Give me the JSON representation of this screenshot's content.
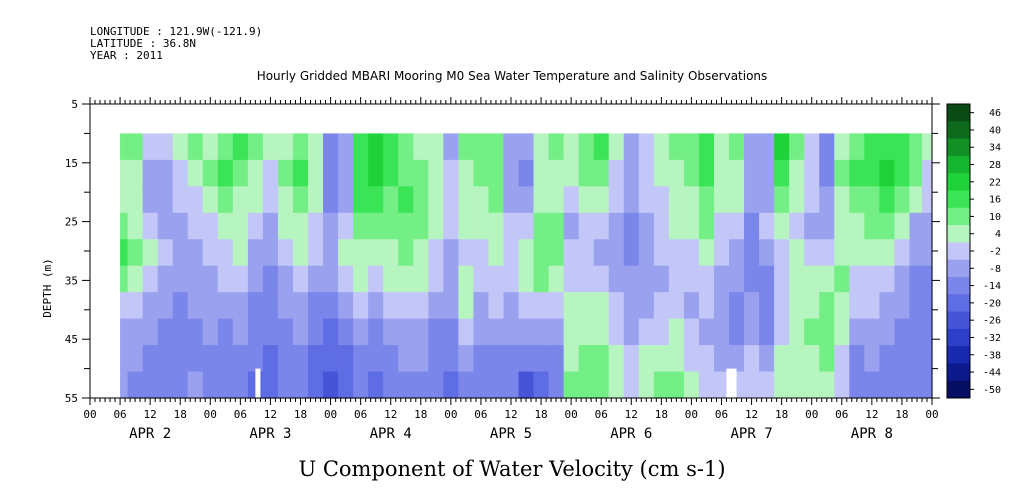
{
  "header": {
    "longitude": "LONGITUDE : 121.9W(-121.9)",
    "latitude": "LATITUDE : 36.8N",
    "year": "YEAR : 2011"
  },
  "chart_data": {
    "type": "heatmap",
    "title": "Hourly Gridded MBARI Mooring M0 Sea Water Temperature and Salinity Observations",
    "xlabel": "U Component of Water Velocity (cm s-1)",
    "ylabel": "DEPTH (m)",
    "y_ticks": [
      5,
      15,
      25,
      35,
      45,
      55
    ],
    "ylim": [
      55,
      5
    ],
    "data_depth_range": [
      10,
      55
    ],
    "x_hour_ticks": [
      "00",
      "06",
      "12",
      "18",
      "00",
      "06",
      "12",
      "18",
      "00",
      "06",
      "12",
      "18",
      "00",
      "06",
      "12",
      "18",
      "00",
      "06",
      "12",
      "18",
      "00",
      "06",
      "12",
      "18",
      "00",
      "06",
      "12",
      "18",
      "00"
    ],
    "day_labels": [
      "APR  2",
      "APR  3",
      "APR  4",
      "APR  5",
      "APR  6",
      "APR  7",
      "APR  8"
    ],
    "xlim_hours": [
      0,
      168
    ],
    "data_start_hour": 6,
    "colorbar_levels": [
      "46",
      "40",
      "34",
      "28",
      "22",
      "16",
      "10",
      "4",
      "-2",
      "-8",
      "-14",
      "-20",
      "-26",
      "-32",
      "-38",
      "-44",
      "-50"
    ],
    "colorbar_colors": [
      "#0b4a14",
      "#0e6b1e",
      "#129026",
      "#16b52f",
      "#1fd23a",
      "#3be457",
      "#73ef86",
      "#b7f5c0",
      "#c3c7f7",
      "#9aa2f0",
      "#7b86ea",
      "#5f6de4",
      "#4655d8",
      "#2d3ec9",
      "#1a2ab0",
      "#0d1a8c",
      "#060e64"
    ],
    "columns": [
      {
        "hour": 6,
        "v": [
          12,
          8,
          6,
          10,
          16,
          10,
          2,
          -4,
          -6,
          -8
        ]
      },
      {
        "hour": 9,
        "v": [
          10,
          6,
          4,
          8,
          14,
          8,
          0,
          -6,
          -8,
          -10
        ]
      },
      {
        "hour": 12,
        "v": [
          2,
          -4,
          -6,
          -2,
          4,
          2,
          -4,
          -8,
          -10,
          -12
        ]
      },
      {
        "hour": 15,
        "v": [
          -2,
          -6,
          -8,
          -6,
          -2,
          -4,
          -8,
          -10,
          -12,
          -12
        ]
      },
      {
        "hour": 18,
        "v": [
          6,
          2,
          -2,
          -4,
          -6,
          -8,
          -10,
          -12,
          -14,
          -14
        ]
      },
      {
        "hour": 21,
        "v": [
          10,
          8,
          2,
          -2,
          -4,
          -6,
          -8,
          -10,
          -10,
          -8
        ]
      },
      {
        "hour": 24,
        "v": [
          8,
          10,
          6,
          2,
          0,
          -4,
          -6,
          -8,
          -10,
          -12
        ]
      },
      {
        "hour": 27,
        "v": [
          12,
          16,
          10,
          6,
          2,
          -2,
          -6,
          -10,
          -12,
          -14
        ]
      },
      {
        "hour": 30,
        "v": [
          16,
          14,
          8,
          4,
          6,
          2,
          -4,
          -8,
          -12,
          -14
        ]
      },
      {
        "hour": 33,
        "v": [
          10,
          8,
          4,
          -2,
          -6,
          -8,
          -10,
          -12,
          -14,
          -16
        ]
      },
      {
        "hour": 36,
        "v": [
          4,
          2,
          0,
          -4,
          -8,
          -10,
          -12,
          -14,
          -16,
          -16
        ]
      },
      {
        "hour": 39,
        "v": [
          8,
          10,
          8,
          4,
          0,
          -4,
          -8,
          -10,
          -12,
          -14
        ]
      },
      {
        "hour": 42,
        "v": [
          14,
          16,
          12,
          8,
          4,
          0,
          -4,
          -8,
          -10,
          -12
        ]
      },
      {
        "hour": 45,
        "v": [
          8,
          6,
          4,
          2,
          -2,
          -6,
          -10,
          -14,
          -16,
          -18
        ]
      },
      {
        "hour": 48,
        "v": [
          -10,
          -14,
          -10,
          -6,
          -4,
          -8,
          -12,
          -16,
          -20,
          -22
        ]
      },
      {
        "hour": 51,
        "v": [
          -6,
          -8,
          -6,
          0,
          6,
          2,
          -6,
          -12,
          -16,
          -18
        ]
      },
      {
        "hour": 54,
        "v": [
          18,
          20,
          16,
          10,
          8,
          4,
          -2,
          -8,
          -12,
          -14
        ]
      },
      {
        "hour": 57,
        "v": [
          22,
          24,
          18,
          12,
          6,
          2,
          -4,
          -10,
          -14,
          -16
        ]
      },
      {
        "hour": 60,
        "v": [
          16,
          18,
          14,
          10,
          6,
          4,
          0,
          -6,
          -10,
          -14
        ]
      },
      {
        "hour": 63,
        "v": [
          10,
          12,
          16,
          14,
          10,
          6,
          2,
          -4,
          -8,
          -10
        ]
      },
      {
        "hour": 66,
        "v": [
          8,
          10,
          14,
          12,
          8,
          4,
          0,
          -4,
          -8,
          -12
        ]
      },
      {
        "hour": 69,
        "v": [
          4,
          6,
          8,
          6,
          2,
          -2,
          -6,
          -10,
          -12,
          -14
        ]
      },
      {
        "hour": 72,
        "v": [
          -4,
          -2,
          2,
          0,
          -4,
          -6,
          -8,
          -12,
          -14,
          -16
        ]
      },
      {
        "hour": 75,
        "v": [
          10,
          8,
          6,
          4,
          2,
          6,
          4,
          -2,
          -8,
          -12
        ]
      },
      {
        "hour": 78,
        "v": [
          12,
          10,
          8,
          4,
          0,
          -2,
          -4,
          -8,
          -12,
          -14
        ]
      },
      {
        "hour": 81,
        "v": [
          14,
          12,
          10,
          8,
          4,
          2,
          -2,
          -6,
          -10,
          -12
        ]
      },
      {
        "hour": 84,
        "v": [
          -6,
          -8,
          -4,
          0,
          2,
          0,
          -4,
          -8,
          -12,
          -14
        ]
      },
      {
        "hour": 87,
        "v": [
          -8,
          -10,
          -6,
          -2,
          4,
          8,
          2,
          -6,
          -14,
          -22
        ]
      },
      {
        "hour": 90,
        "v": [
          6,
          4,
          8,
          10,
          14,
          10,
          2,
          -6,
          -14,
          -18
        ]
      },
      {
        "hour": 93,
        "v": [
          10,
          8,
          6,
          10,
          12,
          8,
          0,
          -8,
          -12,
          -14
        ]
      },
      {
        "hour": 96,
        "v": [
          6,
          4,
          0,
          -4,
          -2,
          2,
          4,
          6,
          8,
          10
        ]
      },
      {
        "hour": 99,
        "v": [
          12,
          10,
          6,
          2,
          0,
          2,
          6,
          8,
          10,
          12
        ]
      },
      {
        "hour": 102,
        "v": [
          16,
          14,
          8,
          2,
          -4,
          -2,
          4,
          8,
          10,
          12
        ]
      },
      {
        "hour": 105,
        "v": [
          4,
          2,
          -2,
          -6,
          -8,
          -6,
          -2,
          2,
          4,
          6
        ]
      },
      {
        "hour": 108,
        "v": [
          -4,
          -6,
          -8,
          -10,
          -10,
          -8,
          -6,
          -4,
          -2,
          0
        ]
      },
      {
        "hour": 111,
        "v": [
          2,
          0,
          -2,
          -4,
          -6,
          -6,
          -4,
          0,
          4,
          8
        ]
      },
      {
        "hour": 114,
        "v": [
          6,
          4,
          2,
          0,
          -2,
          -4,
          -2,
          2,
          6,
          10
        ]
      },
      {
        "hour": 117,
        "v": [
          10,
          8,
          6,
          4,
          0,
          -2,
          0,
          4,
          8,
          10
        ]
      },
      {
        "hour": 120,
        "v": [
          12,
          10,
          8,
          6,
          2,
          -2,
          -4,
          -2,
          2,
          6
        ]
      },
      {
        "hour": 123,
        "v": [
          16,
          18,
          14,
          10,
          6,
          2,
          -2,
          -4,
          -2,
          2
        ]
      },
      {
        "hour": 126,
        "v": [
          8,
          6,
          4,
          2,
          -2,
          -4,
          -6,
          -8,
          -4,
          0
        ]
      },
      {
        "hour": 129,
        "v": [
          10,
          8,
          6,
          2,
          -4,
          -8,
          -10,
          -10,
          -6,
          -2
        ]
      },
      {
        "hour": 132,
        "v": [
          -4,
          -6,
          -8,
          -10,
          -10,
          -10,
          -8,
          -6,
          -2,
          2
        ]
      },
      {
        "hour": 135,
        "v": [
          -8,
          -6,
          -4,
          -2,
          -6,
          -10,
          -12,
          -10,
          -6,
          -2
        ]
      },
      {
        "hour": 138,
        "v": [
          26,
          20,
          10,
          4,
          2,
          0,
          -2,
          2,
          6,
          8
        ]
      },
      {
        "hour": 141,
        "v": [
          10,
          8,
          4,
          2,
          6,
          8,
          6,
          4,
          6,
          8
        ]
      },
      {
        "hour": 144,
        "v": [
          2,
          0,
          -2,
          -4,
          -2,
          4,
          8,
          10,
          8,
          6
        ]
      },
      {
        "hour": 147,
        "v": [
          -14,
          -10,
          -6,
          -4,
          2,
          8,
          10,
          12,
          10,
          8
        ]
      },
      {
        "hour": 150,
        "v": [
          8,
          10,
          8,
          6,
          8,
          10,
          8,
          4,
          2,
          0
        ]
      },
      {
        "hour": 153,
        "v": [
          14,
          16,
          12,
          8,
          4,
          2,
          -2,
          -6,
          -10,
          -12
        ]
      },
      {
        "hour": 156,
        "v": [
          18,
          20,
          14,
          10,
          6,
          2,
          -2,
          -6,
          -8,
          -10
        ]
      },
      {
        "hour": 159,
        "v": [
          20,
          22,
          16,
          10,
          4,
          -2,
          -6,
          -8,
          -10,
          -10
        ]
      },
      {
        "hour": 162,
        "v": [
          16,
          18,
          12,
          6,
          0,
          -6,
          -8,
          -10,
          -10,
          -10
        ]
      },
      {
        "hour": 165,
        "v": [
          14,
          10,
          4,
          -4,
          -8,
          -10,
          -10,
          -12,
          -12,
          -12
        ]
      },
      {
        "hour": 167,
        "v": [
          6,
          2,
          -2,
          -6,
          -8,
          -10,
          -10,
          -12,
          -12,
          -12
        ]
      }
    ],
    "gaps": [
      {
        "hour_start": 33,
        "hour_end": 34,
        "depth_top": 50,
        "depth_bottom": 55
      },
      {
        "hour_start": 127,
        "hour_end": 129,
        "depth_top": 50,
        "depth_bottom": 55
      }
    ]
  }
}
